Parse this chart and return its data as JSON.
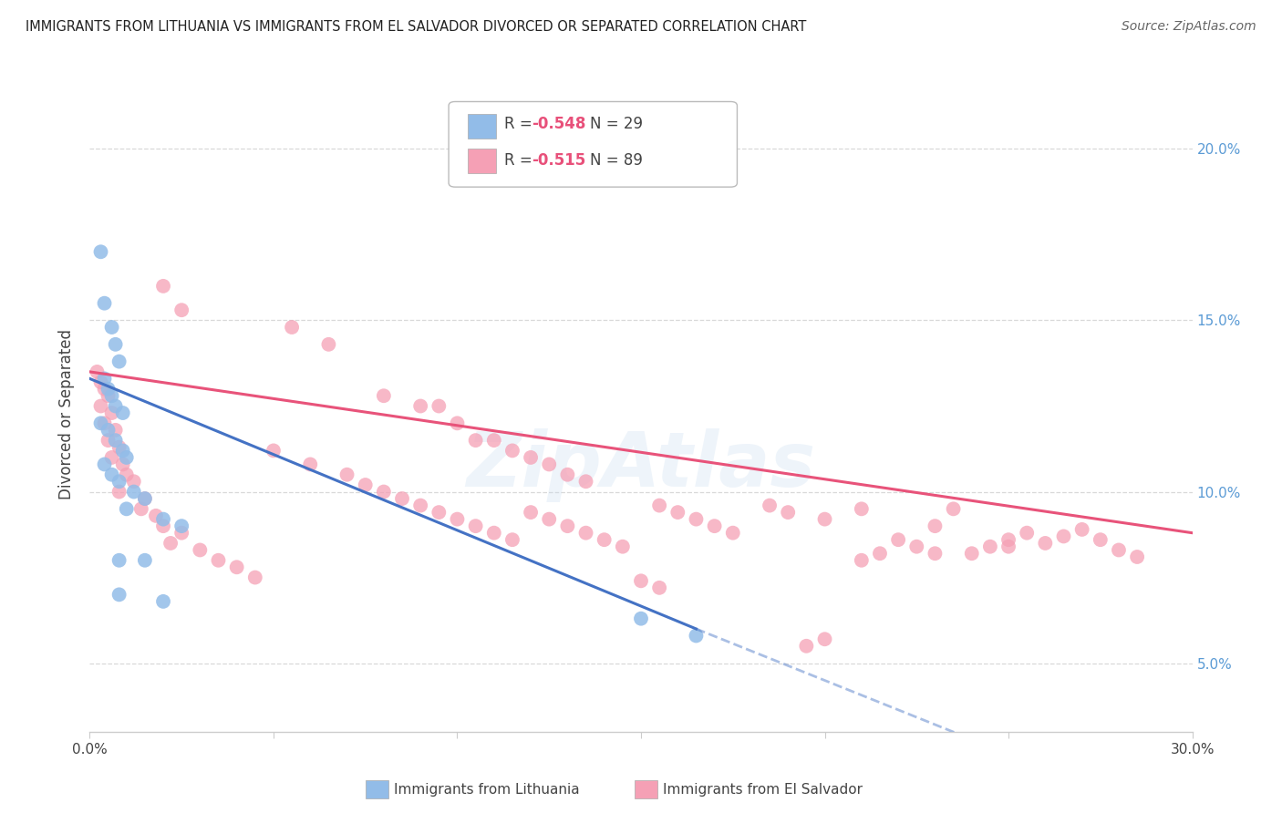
{
  "title": "IMMIGRANTS FROM LITHUANIA VS IMMIGRANTS FROM EL SALVADOR DIVORCED OR SEPARATED CORRELATION CHART",
  "source": "Source: ZipAtlas.com",
  "ylabel": "Divorced or Separated",
  "x_min": 0.0,
  "x_max": 0.3,
  "y_min": 0.03,
  "y_max": 0.215,
  "y_ticks": [
    0.05,
    0.1,
    0.15,
    0.2
  ],
  "y_tick_labels": [
    "5.0%",
    "10.0%",
    "15.0%",
    "20.0%"
  ],
  "x_ticks": [
    0.0,
    0.05,
    0.1,
    0.15,
    0.2,
    0.25,
    0.3
  ],
  "x_tick_labels": [
    "0.0%",
    "",
    "",
    "",
    "",
    "",
    "30.0%"
  ],
  "legend_r_blue": "-0.548",
  "legend_n_blue": "29",
  "legend_r_pink": "-0.515",
  "legend_n_pink": "89",
  "legend_label_blue": "Immigrants from Lithuania",
  "legend_label_pink": "Immigrants from El Salvador",
  "blue_color": "#92bce8",
  "pink_color": "#f5a0b5",
  "blue_line_color": "#4472c4",
  "pink_line_color": "#e8537a",
  "blue_scatter": [
    [
      0.003,
      0.17
    ],
    [
      0.004,
      0.155
    ],
    [
      0.006,
      0.148
    ],
    [
      0.007,
      0.143
    ],
    [
      0.008,
      0.138
    ],
    [
      0.004,
      0.133
    ],
    [
      0.005,
      0.13
    ],
    [
      0.006,
      0.128
    ],
    [
      0.007,
      0.125
    ],
    [
      0.009,
      0.123
    ],
    [
      0.003,
      0.12
    ],
    [
      0.005,
      0.118
    ],
    [
      0.007,
      0.115
    ],
    [
      0.009,
      0.112
    ],
    [
      0.01,
      0.11
    ],
    [
      0.004,
      0.108
    ],
    [
      0.006,
      0.105
    ],
    [
      0.008,
      0.103
    ],
    [
      0.012,
      0.1
    ],
    [
      0.015,
      0.098
    ],
    [
      0.01,
      0.095
    ],
    [
      0.02,
      0.092
    ],
    [
      0.025,
      0.09
    ],
    [
      0.008,
      0.08
    ],
    [
      0.015,
      0.08
    ],
    [
      0.008,
      0.07
    ],
    [
      0.02,
      0.068
    ],
    [
      0.15,
      0.063
    ],
    [
      0.165,
      0.058
    ]
  ],
  "pink_scatter": [
    [
      0.002,
      0.135
    ],
    [
      0.003,
      0.132
    ],
    [
      0.004,
      0.13
    ],
    [
      0.005,
      0.128
    ],
    [
      0.003,
      0.125
    ],
    [
      0.006,
      0.123
    ],
    [
      0.004,
      0.12
    ],
    [
      0.007,
      0.118
    ],
    [
      0.005,
      0.115
    ],
    [
      0.008,
      0.113
    ],
    [
      0.006,
      0.11
    ],
    [
      0.009,
      0.108
    ],
    [
      0.01,
      0.105
    ],
    [
      0.012,
      0.103
    ],
    [
      0.008,
      0.1
    ],
    [
      0.015,
      0.098
    ],
    [
      0.014,
      0.095
    ],
    [
      0.018,
      0.093
    ],
    [
      0.02,
      0.09
    ],
    [
      0.025,
      0.088
    ],
    [
      0.022,
      0.085
    ],
    [
      0.03,
      0.083
    ],
    [
      0.035,
      0.08
    ],
    [
      0.04,
      0.078
    ],
    [
      0.045,
      0.075
    ],
    [
      0.02,
      0.16
    ],
    [
      0.025,
      0.153
    ],
    [
      0.055,
      0.148
    ],
    [
      0.065,
      0.143
    ],
    [
      0.08,
      0.128
    ],
    [
      0.09,
      0.125
    ],
    [
      0.095,
      0.125
    ],
    [
      0.1,
      0.12
    ],
    [
      0.105,
      0.115
    ],
    [
      0.11,
      0.115
    ],
    [
      0.115,
      0.112
    ],
    [
      0.12,
      0.11
    ],
    [
      0.125,
      0.108
    ],
    [
      0.13,
      0.105
    ],
    [
      0.135,
      0.103
    ],
    [
      0.05,
      0.112
    ],
    [
      0.06,
      0.108
    ],
    [
      0.07,
      0.105
    ],
    [
      0.075,
      0.102
    ],
    [
      0.08,
      0.1
    ],
    [
      0.085,
      0.098
    ],
    [
      0.09,
      0.096
    ],
    [
      0.095,
      0.094
    ],
    [
      0.1,
      0.092
    ],
    [
      0.105,
      0.09
    ],
    [
      0.11,
      0.088
    ],
    [
      0.115,
      0.086
    ],
    [
      0.12,
      0.094
    ],
    [
      0.125,
      0.092
    ],
    [
      0.13,
      0.09
    ],
    [
      0.135,
      0.088
    ],
    [
      0.14,
      0.086
    ],
    [
      0.145,
      0.084
    ],
    [
      0.155,
      0.096
    ],
    [
      0.16,
      0.094
    ],
    [
      0.165,
      0.092
    ],
    [
      0.17,
      0.09
    ],
    [
      0.175,
      0.088
    ],
    [
      0.185,
      0.096
    ],
    [
      0.19,
      0.094
    ],
    [
      0.2,
      0.092
    ],
    [
      0.15,
      0.074
    ],
    [
      0.155,
      0.072
    ],
    [
      0.195,
      0.055
    ],
    [
      0.2,
      0.057
    ],
    [
      0.21,
      0.08
    ],
    [
      0.215,
      0.082
    ],
    [
      0.22,
      0.086
    ],
    [
      0.225,
      0.084
    ],
    [
      0.23,
      0.09
    ],
    [
      0.235,
      0.095
    ],
    [
      0.24,
      0.082
    ],
    [
      0.245,
      0.084
    ],
    [
      0.25,
      0.086
    ],
    [
      0.21,
      0.095
    ],
    [
      0.23,
      0.082
    ],
    [
      0.25,
      0.084
    ],
    [
      0.255,
      0.088
    ],
    [
      0.26,
      0.085
    ],
    [
      0.265,
      0.087
    ],
    [
      0.27,
      0.089
    ],
    [
      0.275,
      0.086
    ],
    [
      0.28,
      0.083
    ],
    [
      0.285,
      0.081
    ]
  ],
  "blue_trend_solid": {
    "x_start": 0.0,
    "y_start": 0.133,
    "x_end": 0.165,
    "y_end": 0.06
  },
  "blue_trend_dash": {
    "x_start": 0.165,
    "y_start": 0.06,
    "x_end": 0.3,
    "y_end": 0.002
  },
  "pink_trend": {
    "x_start": 0.0,
    "y_start": 0.135,
    "x_end": 0.3,
    "y_end": 0.088
  },
  "watermark": "ZipAtlas",
  "background_color": "#ffffff",
  "grid_color": "#d8d8d8"
}
